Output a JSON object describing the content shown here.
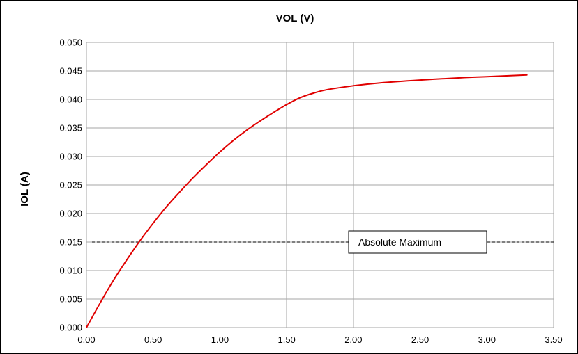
{
  "chart_data": {
    "type": "line",
    "title": "VOL (V)",
    "xlabel": "",
    "ylabel": "IOL (A)",
    "xlim": [
      0,
      3.5
    ],
    "ylim": [
      0,
      0.05
    ],
    "x_ticks": [
      "0.00",
      "0.50",
      "1.00",
      "1.50",
      "2.00",
      "2.50",
      "3.00",
      "3.50"
    ],
    "y_ticks": [
      "0.000",
      "0.005",
      "0.010",
      "0.015",
      "0.020",
      "0.025",
      "0.030",
      "0.035",
      "0.040",
      "0.045",
      "0.050"
    ],
    "grid": true,
    "legend": "none",
    "series": [
      {
        "color": "#e00000",
        "x": [
          0,
          0.1,
          0.2,
          0.3,
          0.4,
          0.5,
          0.6,
          0.7,
          0.8,
          0.9,
          1.0,
          1.1,
          1.2,
          1.3,
          1.4,
          1.5,
          1.6,
          1.7,
          1.8,
          2.0,
          2.2,
          2.5,
          2.8,
          3.0,
          3.3
        ],
        "y": [
          0,
          0.0042,
          0.0082,
          0.0118,
          0.0152,
          0.0183,
          0.0212,
          0.0238,
          0.0263,
          0.0286,
          0.0308,
          0.0328,
          0.0346,
          0.0362,
          0.0377,
          0.0391,
          0.0403,
          0.0411,
          0.0417,
          0.0424,
          0.0429,
          0.0434,
          0.0438,
          0.044,
          0.0443
        ]
      }
    ],
    "reference_line": {
      "value": 0.015,
      "label": "Absolute Maximum",
      "style": "dashed",
      "color": "#000000"
    }
  }
}
